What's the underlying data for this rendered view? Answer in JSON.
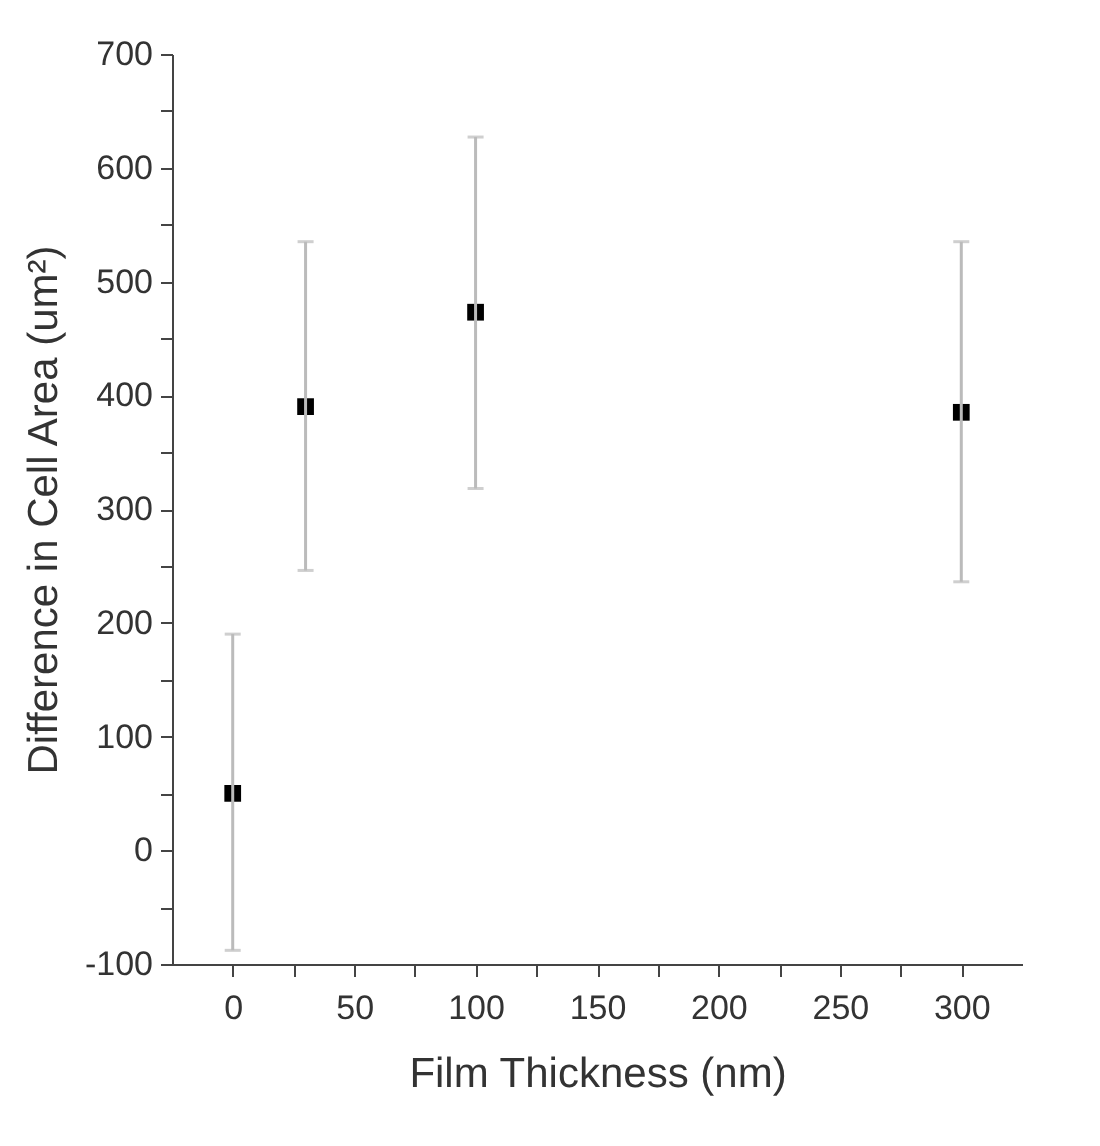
{
  "chart_data": {
    "type": "scatter",
    "xlabel": "Film Thickness (nm)",
    "ylabel": "Difference in Cell Area (um²)",
    "x": [
      0,
      30,
      100,
      300
    ],
    "series": [
      {
        "color": "#000000",
        "values": [
          50,
          390,
          473,
          385
        ],
        "errors": [
          [
            -88,
            190
          ],
          [
            246,
            535
          ],
          [
            318,
            627
          ],
          [
            236,
            535
          ]
        ]
      }
    ],
    "marker": "square",
    "grid": false,
    "xlim": [
      -25,
      325
    ],
    "xticks": [
      0,
      {
        "value": 25,
        "label": null
      },
      50,
      {
        "value": 75,
        "label": null
      },
      100,
      {
        "value": 125,
        "label": null
      },
      150,
      {
        "value": 175,
        "label": null
      },
      200,
      {
        "value": 225,
        "label": null
      },
      250,
      {
        "value": 275,
        "label": null
      },
      300
    ],
    "ylim": [
      -100,
      700
    ],
    "yticks": [
      -100,
      {
        "value": -50,
        "label": null
      },
      0,
      {
        "value": 50,
        "label": null
      },
      100,
      {
        "value": 150,
        "label": null
      },
      200,
      {
        "value": 250,
        "label": null
      },
      300,
      {
        "value": 350,
        "label": null
      },
      400,
      {
        "value": 450,
        "label": null
      },
      500,
      {
        "value": 550,
        "label": null
      },
      600,
      {
        "value": 650,
        "label": null
      },
      700
    ]
  }
}
